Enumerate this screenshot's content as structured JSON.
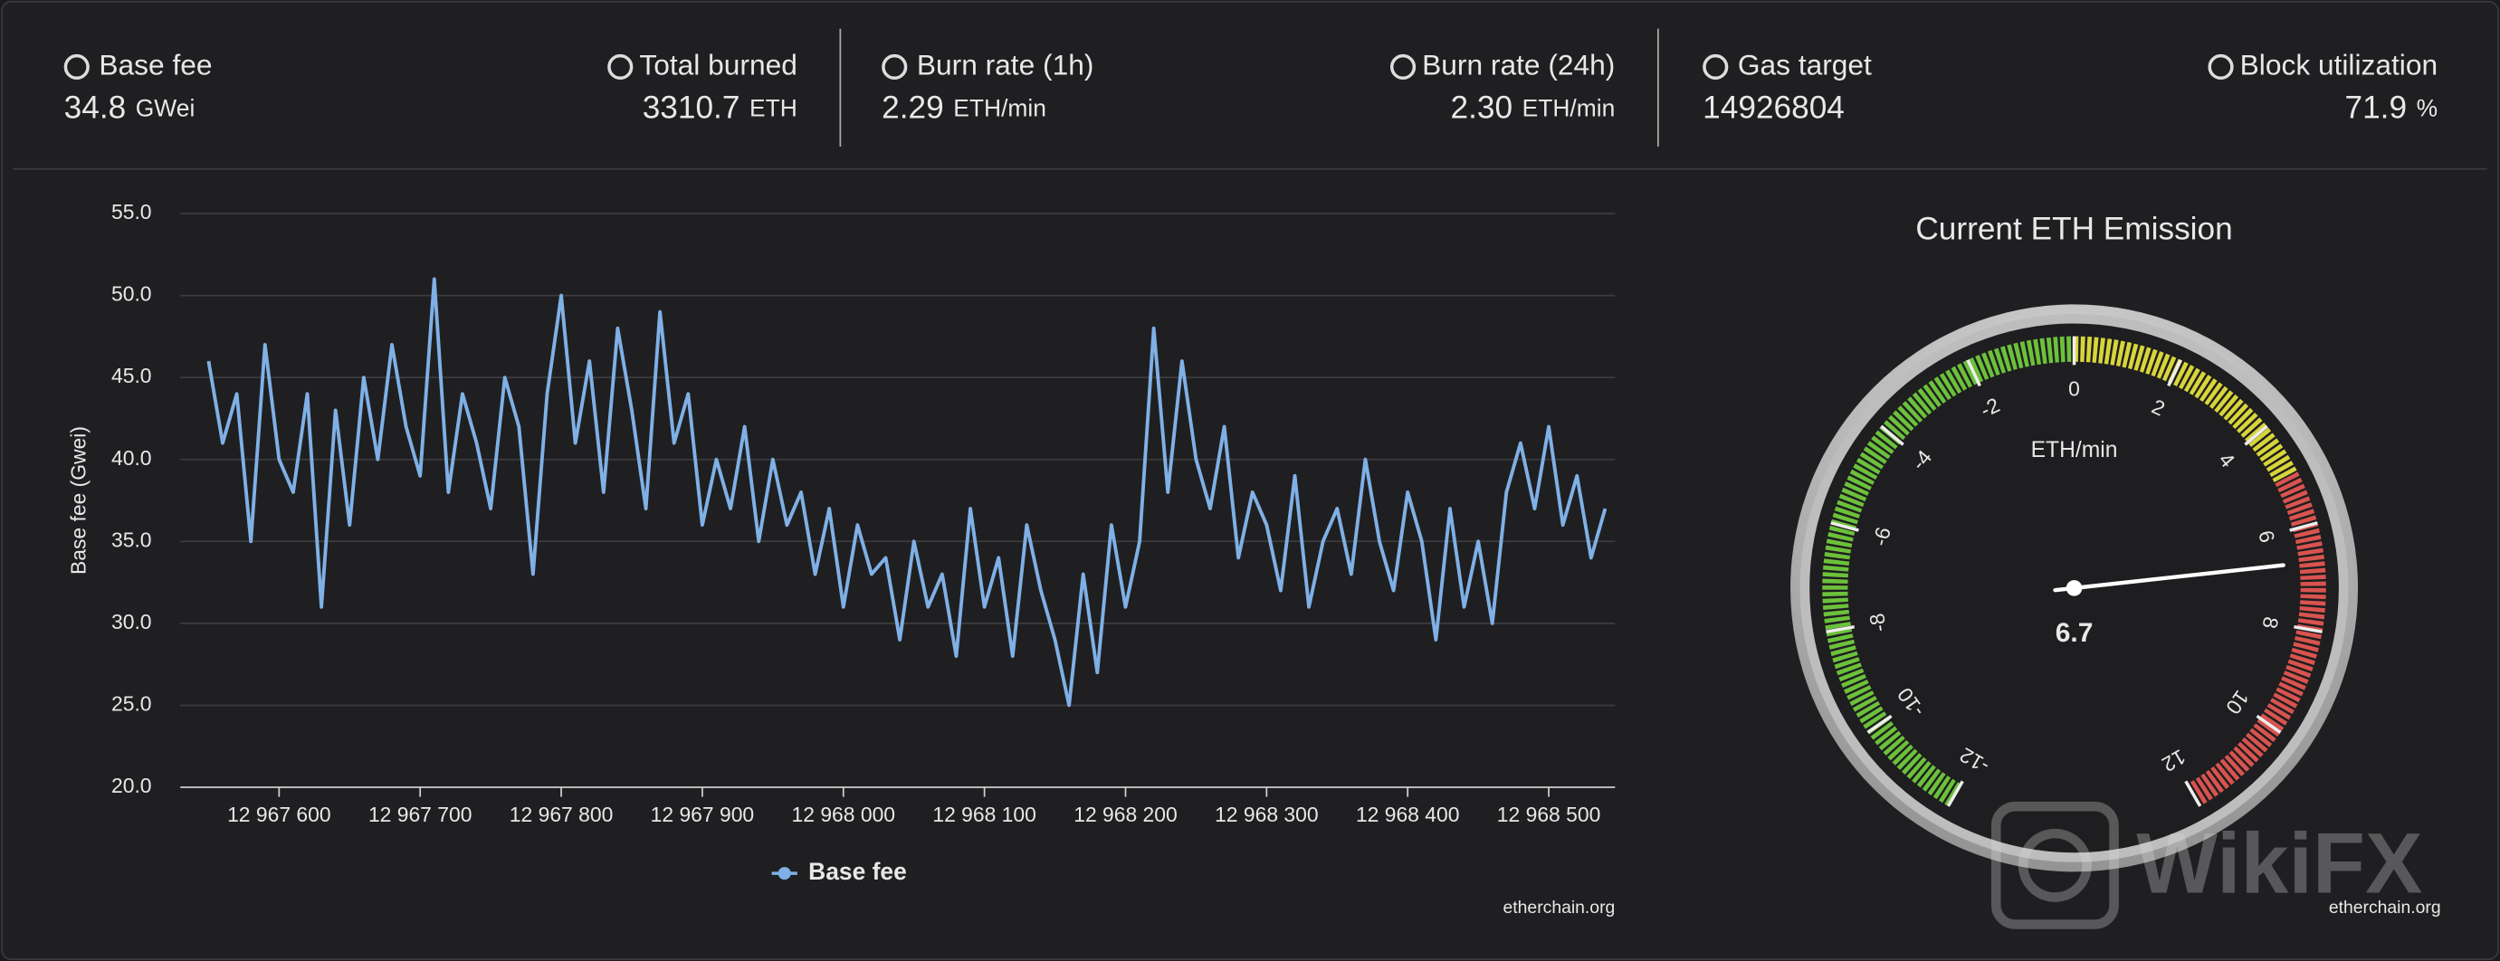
{
  "header": {
    "stats": [
      {
        "label": "Base fee",
        "value": "34.8",
        "unit": "GWei"
      },
      {
        "label": "Total burned",
        "value": "3310.7",
        "unit": "ETH"
      },
      {
        "label": "Burn rate (1h)",
        "value": "2.29",
        "unit": "ETH/min"
      },
      {
        "label": "Burn rate (24h)",
        "value": "2.30",
        "unit": "ETH/min"
      },
      {
        "label": "Gas target",
        "value": "14926804"
      },
      {
        "label": "Block utilization",
        "value": "71.9",
        "unit": "%"
      }
    ]
  },
  "watermark": "WikiFX",
  "chart_data": [
    {
      "type": "line",
      "ylabel": "Base fee (Gwei)",
      "credit": "etherchain.org",
      "grid": true,
      "x": [
        12967550,
        12967560,
        12967570,
        12967580,
        12967590,
        12967600,
        12967610,
        12967620,
        12967630,
        12967640,
        12967650,
        12967660,
        12967670,
        12967680,
        12967690,
        12967700,
        12967710,
        12967720,
        12967730,
        12967740,
        12967750,
        12967760,
        12967770,
        12967780,
        12967790,
        12967800,
        12967810,
        12967820,
        12967830,
        12967840,
        12967850,
        12967860,
        12967870,
        12967880,
        12967890,
        12967900,
        12967910,
        12967920,
        12967930,
        12967940,
        12967950,
        12967960,
        12967970,
        12967980,
        12967990,
        12968000,
        12968010,
        12968020,
        12968030,
        12968040,
        12968050,
        12968060,
        12968070,
        12968080,
        12968090,
        12968100,
        12968110,
        12968120,
        12968130,
        12968140,
        12968150,
        12968160,
        12968170,
        12968180,
        12968190,
        12968200,
        12968210,
        12968220,
        12968230,
        12968240,
        12968250,
        12968260,
        12968270,
        12968280,
        12968290,
        12968300,
        12968310,
        12968320,
        12968330,
        12968340,
        12968350,
        12968360,
        12968370,
        12968380,
        12968390,
        12968400,
        12968410,
        12968420,
        12968430,
        12968440,
        12968450,
        12968460,
        12968470,
        12968480,
        12968490,
        12968500,
        12968510,
        12968520,
        12968530,
        12968540
      ],
      "series": [
        {
          "name": "Base fee",
          "color": "#7fb0e6",
          "values": [
            46,
            41,
            44,
            35,
            47,
            40,
            38,
            44,
            31,
            43,
            36,
            45,
            40,
            47,
            42,
            39,
            51,
            38,
            44,
            41,
            37,
            45,
            42,
            33,
            44,
            50,
            41,
            46,
            38,
            48,
            43,
            37,
            49,
            41,
            44,
            36,
            40,
            37,
            42,
            35,
            40,
            36,
            38,
            33,
            37,
            31,
            36,
            33,
            34,
            29,
            35,
            31,
            33,
            28,
            37,
            31,
            34,
            28,
            36,
            32,
            29,
            25,
            33,
            27,
            36,
            31,
            35,
            48,
            38,
            46,
            40,
            37,
            42,
            34,
            38,
            36,
            32,
            39,
            31,
            35,
            37,
            33,
            40,
            35,
            32,
            38,
            35,
            29,
            37,
            31,
            35,
            30,
            38,
            41,
            37,
            42,
            36,
            39,
            34,
            37
          ]
        }
      ],
      "xlim": [
        12967530,
        12968547
      ],
      "xticks": [
        {
          "value": 12967600,
          "label": "12 967 600"
        },
        {
          "value": 12967700,
          "label": "12 967 700"
        },
        {
          "value": 12967800,
          "label": "12 967 800"
        },
        {
          "value": 12967900,
          "label": "12 967 900"
        },
        {
          "value": 12968000,
          "label": "12 968 000"
        },
        {
          "value": 12968100,
          "label": "12 968 100"
        },
        {
          "value": 12968200,
          "label": "12 968 200"
        },
        {
          "value": 12968300,
          "label": "12 968 300"
        },
        {
          "value": 12968400,
          "label": "12 968 400"
        },
        {
          "value": 12968500,
          "label": "12 968 500"
        }
      ],
      "ylim": [
        20,
        55
      ],
      "yticks": [
        {
          "value": 20,
          "label": "20.0"
        },
        {
          "value": 25,
          "label": "25.0"
        },
        {
          "value": 30,
          "label": "30.0"
        },
        {
          "value": 35,
          "label": "35.0"
        },
        {
          "value": 40,
          "label": "40.0"
        },
        {
          "value": 45,
          "label": "45.0"
        },
        {
          "value": 50,
          "label": "50.0"
        },
        {
          "value": 55,
          "label": "55.0"
        }
      ]
    },
    {
      "type": "gauge",
      "title": "Current ETH Emission",
      "unit_label": "ETH/min",
      "credit": "etherchain.org",
      "value": 6.7,
      "ylim": [
        -12,
        12
      ],
      "yticks": [
        -12,
        -10,
        -8,
        -6,
        -4,
        -2,
        0,
        2,
        4,
        6,
        8,
        10,
        12
      ],
      "bands": [
        {
          "from": -12,
          "to": 0,
          "color": "#6cc13b"
        },
        {
          "from": 0,
          "to": 5,
          "color": "#d8d53a"
        },
        {
          "from": 5,
          "to": 12,
          "color": "#d9534f"
        }
      ]
    }
  ]
}
